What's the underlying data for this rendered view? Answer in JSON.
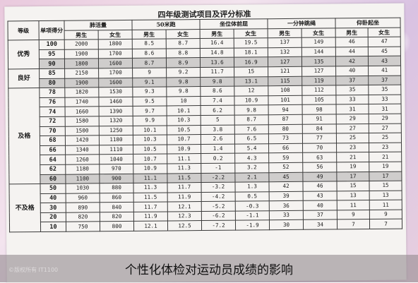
{
  "title": "四年级测试项目及评分标准",
  "headers": {
    "grade": "等级",
    "score": "单项得分",
    "groups": [
      "肺活量",
      "50米跑",
      "坐位体前屈",
      "一分钟跳绳",
      "仰卧起坐"
    ],
    "sub": [
      "男生",
      "女生"
    ]
  },
  "rows": [
    {
      "score": "100",
      "grade": "优秀",
      "gradeSpan": 3,
      "vals": [
        "2000",
        "1800",
        "8.5",
        "8.7",
        "16.4",
        "19.5",
        "137",
        "149",
        "46",
        "47"
      ],
      "shade": false
    },
    {
      "score": "95",
      "vals": [
        "1900",
        "1700",
        "8.6",
        "8.8",
        "14.8",
        "18.1",
        "132",
        "144",
        "44",
        "45"
      ],
      "shade": false
    },
    {
      "score": "90",
      "vals": [
        "1800",
        "1600",
        "8.7",
        "8.9",
        "13.6",
        "16.9",
        "127",
        "135",
        "42",
        "43"
      ],
      "shade": true
    },
    {
      "score": "85",
      "grade": "良好",
      "gradeSpan": 2,
      "vals": [
        "2150",
        "1700",
        "9",
        "9.2",
        "11.7",
        "15",
        "121",
        "127",
        "40",
        "41"
      ],
      "shade": false
    },
    {
      "score": "80",
      "vals": [
        "1900",
        "1600",
        "9.1",
        "9.8",
        "9.8",
        "13.1",
        "115",
        "119",
        "37",
        "37"
      ],
      "shade": true
    },
    {
      "score": "78",
      "grade": "及格",
      "gradeSpan": 10,
      "vals": [
        "1820",
        "1530",
        "9.3",
        "9.8",
        "8.6",
        "12",
        "108",
        "112",
        "35",
        "35"
      ],
      "shade": false
    },
    {
      "score": "76",
      "vals": [
        "1740",
        "1460",
        "9.5",
        "10",
        "7.4",
        "10.9",
        "101",
        "105",
        "33",
        "33"
      ],
      "shade": false
    },
    {
      "score": "74",
      "vals": [
        "1660",
        "1390",
        "9.7",
        "10.1",
        "6.2",
        "9.8",
        "94",
        "98",
        "31",
        "31"
      ],
      "shade": false
    },
    {
      "score": "72",
      "vals": [
        "1580",
        "1320",
        "9.9",
        "10.3",
        "5",
        "8.7",
        "87",
        "91",
        "29",
        "29"
      ],
      "shade": false
    },
    {
      "score": "70",
      "vals": [
        "1500",
        "1250",
        "10.1",
        "10.5",
        "3.8",
        "7.6",
        "80",
        "84",
        "27",
        "27"
      ],
      "shade": false
    },
    {
      "score": "68",
      "vals": [
        "1420",
        "1180",
        "10.3",
        "10.7",
        "2.6",
        "6.5",
        "73",
        "77",
        "25",
        "25"
      ],
      "shade": false
    },
    {
      "score": "66",
      "vals": [
        "1340",
        "1110",
        "10.5",
        "10.9",
        "1.4",
        "5.4",
        "66",
        "70",
        "23",
        "23"
      ],
      "shade": false
    },
    {
      "score": "64",
      "vals": [
        "1260",
        "1040",
        "10.7",
        "11.1",
        "0.2",
        "4.3",
        "59",
        "63",
        "21",
        "21"
      ],
      "shade": false
    },
    {
      "score": "62",
      "vals": [
        "1180",
        "970",
        "10.9",
        "11.3",
        "-1",
        "3.2",
        "52",
        "56",
        "19",
        "19"
      ],
      "shade": false
    },
    {
      "score": "60",
      "vals": [
        "1100",
        "900",
        "11.1",
        "11.5",
        "-2.2",
        "2.1",
        "45",
        "49",
        "17",
        "17"
      ],
      "shade": true
    },
    {
      "score": "50",
      "grade": "不及格",
      "gradeSpan": 6,
      "vals": [
        "1030",
        "880",
        "11.3",
        "11.7",
        "-3.2",
        "1.3",
        "42",
        "46",
        "15",
        "15"
      ],
      "shade": false
    },
    {
      "score": "40",
      "vals": [
        "960",
        "860",
        "11.5",
        "11.9",
        "-4.2",
        "0.5",
        "39",
        "43",
        "13",
        "13"
      ],
      "shade": false
    },
    {
      "score": "30",
      "vals": [
        "890",
        "840",
        "11.7",
        "12.1",
        "-5.2",
        "-0.3",
        "36",
        "40",
        "11",
        "11"
      ],
      "shade": false
    },
    {
      "score": "20",
      "vals": [
        "820",
        "820",
        "11.9",
        "12.3",
        "-6.2",
        "-1.1",
        "33",
        "37",
        "9",
        "9"
      ],
      "shade": false
    },
    {
      "score": "10",
      "vals": [
        "750",
        "800",
        "12.1",
        "12.5",
        "-7.2",
        "-1.9",
        "30",
        "34",
        "7",
        "7"
      ],
      "shade": false
    }
  ],
  "banner_text": "个性化体检对运动员成绩的影响",
  "watermark": "©版权所有 IT1100"
}
